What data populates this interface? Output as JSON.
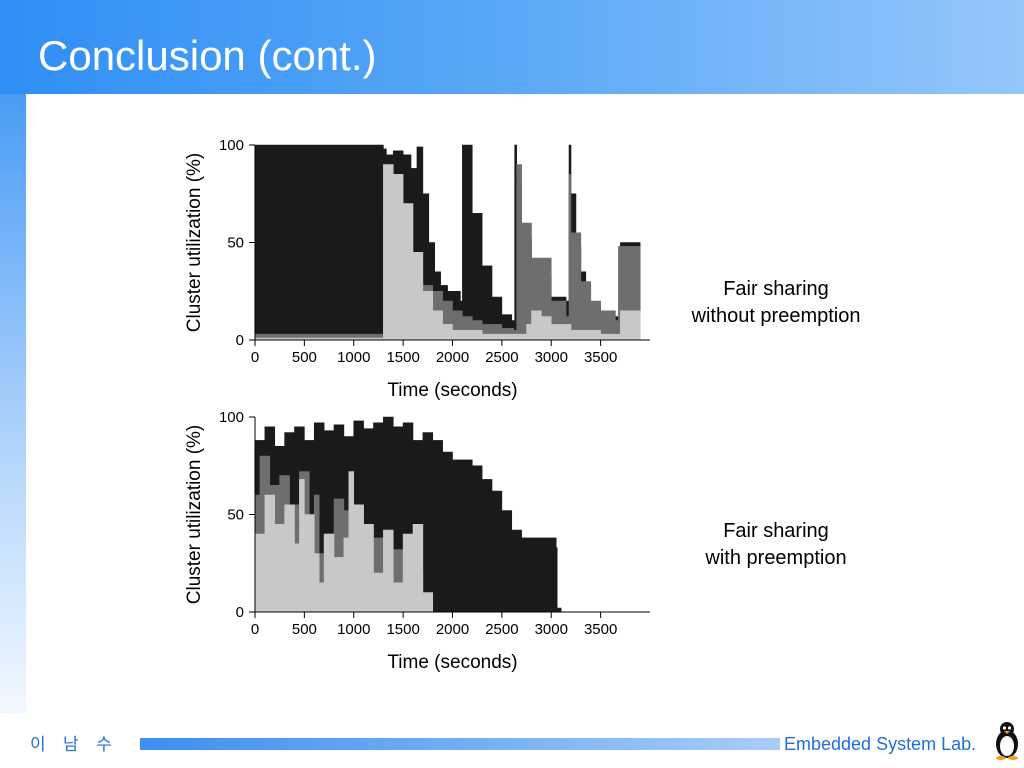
{
  "slide": {
    "title": "Conclusion (cont.)",
    "author": "이 남 수",
    "lab": "Embedded System Lab."
  },
  "colors": {
    "header_start": "#2f8ff5",
    "header_end": "#95c6fb",
    "accent": "#1f6fd8",
    "series_dark": "#1a1a1a",
    "series_gray": "#6e6e6e",
    "series_light": "#c8c8c8"
  },
  "icons": {
    "footer_logo": "penguin-icon"
  },
  "chart_data": [
    {
      "type": "area",
      "caption": [
        "Fair sharing",
        "without preemption"
      ],
      "xlabel": "Time (seconds)",
      "ylabel": "Cluster utilization (%)",
      "xlim": [
        0,
        4000
      ],
      "ylim": [
        0,
        100
      ],
      "xticks": [
        0,
        500,
        1000,
        1500,
        2000,
        2500,
        3000,
        3500
      ],
      "yticks": [
        0,
        50,
        100
      ],
      "grid": false,
      "series": [
        {
          "color": "#1a1a1a",
          "x": [
            0,
            1300,
            1300,
            1330,
            1400,
            1500,
            1580,
            1640,
            1700,
            1760,
            1820,
            1880,
            1950,
            2030,
            2080,
            2100,
            2200,
            2300,
            2400,
            2500,
            2600,
            2630,
            2650,
            2700,
            2800,
            2900,
            3000,
            3150,
            3180,
            3200,
            3250,
            3300,
            3350,
            3400,
            3500,
            3600,
            3700,
            3900
          ],
          "values": [
            100,
            100,
            98,
            95,
            97,
            95,
            88,
            99,
            75,
            50,
            35,
            28,
            25,
            25,
            20,
            100,
            65,
            38,
            22,
            13,
            10,
            100,
            80,
            52,
            40,
            33,
            22,
            20,
            100,
            75,
            48,
            35,
            28,
            18,
            14,
            12,
            50,
            50
          ]
        },
        {
          "color": "#6e6e6e",
          "x": [
            0,
            1300,
            1300,
            1350,
            1400,
            1500,
            1580,
            1650,
            1700,
            1800,
            1900,
            2000,
            2100,
            2200,
            2300,
            2500,
            2620,
            2650,
            2700,
            2800,
            3000,
            3150,
            3180,
            3200,
            3300,
            3400,
            3500,
            3650,
            3680,
            3900
          ],
          "values": [
            3,
            3,
            60,
            55,
            52,
            40,
            36,
            30,
            28,
            25,
            20,
            15,
            12,
            10,
            8,
            6,
            5,
            90,
            60,
            42,
            20,
            12,
            85,
            55,
            30,
            20,
            15,
            10,
            48,
            48
          ]
        },
        {
          "color": "#c8c8c8",
          "x": [
            0,
            1300,
            1300,
            1400,
            1500,
            1600,
            1700,
            1800,
            1900,
            2000,
            2300,
            2600,
            2750,
            2800,
            2900,
            3000,
            3200,
            3500,
            3700,
            3900
          ],
          "values": [
            1,
            1,
            90,
            85,
            70,
            45,
            25,
            15,
            8,
            5,
            3,
            3,
            8,
            15,
            12,
            8,
            5,
            3,
            15,
            15
          ]
        }
      ]
    },
    {
      "type": "area",
      "caption": [
        "Fair sharing",
        "with preemption"
      ],
      "xlabel": "Time (seconds)",
      "ylabel": "Cluster utilization (%)",
      "xlim": [
        0,
        4000
      ],
      "ylim": [
        0,
        100
      ],
      "xticks": [
        0,
        500,
        1000,
        1500,
        2000,
        2500,
        3000,
        3500
      ],
      "yticks": [
        0,
        50,
        100
      ],
      "grid": false,
      "series": [
        {
          "color": "#1a1a1a",
          "x": [
            0,
            100,
            200,
            300,
            400,
            500,
            600,
            700,
            800,
            900,
            1000,
            1100,
            1200,
            1300,
            1400,
            1500,
            1600,
            1700,
            1800,
            1900,
            2000,
            2100,
            2200,
            2300,
            2400,
            2500,
            2600,
            2700,
            2800,
            2900,
            3000,
            3050,
            3060,
            3100
          ],
          "values": [
            88,
            95,
            85,
            92,
            95,
            88,
            97,
            93,
            96,
            90,
            98,
            94,
            97,
            100,
            95,
            97,
            88,
            92,
            88,
            82,
            78,
            78,
            75,
            68,
            62,
            52,
            42,
            38,
            38,
            38,
            38,
            33,
            2,
            0
          ]
        },
        {
          "color": "#6e6e6e",
          "x": [
            0,
            50,
            150,
            250,
            350,
            450,
            550,
            600,
            650,
            700,
            800,
            900,
            1000,
            1100,
            1200,
            1300,
            1400,
            1500,
            1600,
            1700,
            1800,
            1900
          ],
          "values": [
            60,
            80,
            65,
            70,
            55,
            72,
            48,
            60,
            30,
            40,
            58,
            52,
            45,
            42,
            38,
            25,
            32,
            22,
            20,
            5,
            0,
            0
          ]
        },
        {
          "color": "#c8c8c8",
          "x": [
            0,
            100,
            200,
            300,
            400,
            450,
            500,
            600,
            650,
            700,
            800,
            900,
            950,
            1000,
            1100,
            1200,
            1300,
            1400,
            1500,
            1600,
            1700,
            1800
          ],
          "values": [
            40,
            60,
            45,
            55,
            35,
            68,
            50,
            30,
            15,
            40,
            28,
            38,
            72,
            55,
            45,
            20,
            42,
            15,
            40,
            45,
            10,
            0
          ]
        }
      ]
    }
  ]
}
